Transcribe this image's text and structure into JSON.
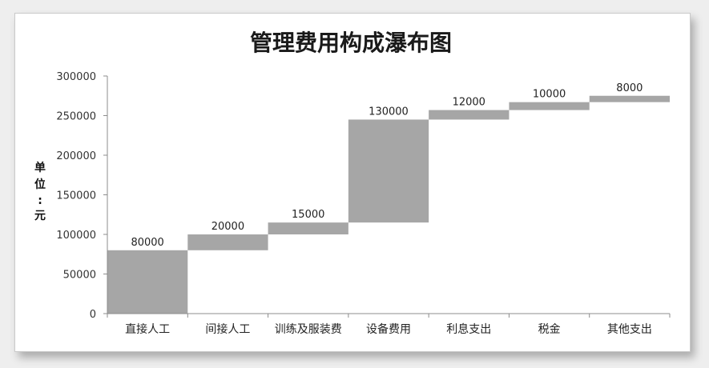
{
  "chart_data": {
    "type": "bar",
    "subtype": "waterfall",
    "title": "管理费用构成瀑布图",
    "ylabel": "单位：元",
    "ylim": [
      0,
      300000
    ],
    "yticks": [
      "0",
      "50000",
      "100000",
      "150000",
      "200000",
      "250000",
      "300000"
    ],
    "categories": [
      "直接人工",
      "间接人工",
      "训练及服装费",
      "设备费用",
      "利息支出",
      "税金",
      "其他支出"
    ],
    "values": [
      80000,
      20000,
      15000,
      130000,
      12000,
      10000,
      8000
    ],
    "data_labels": [
      "80000",
      "20000",
      "15000",
      "130000",
      "12000",
      "10000",
      "8000"
    ],
    "bar_color": "#a6a6a6",
    "grid": false,
    "legend": "none"
  }
}
